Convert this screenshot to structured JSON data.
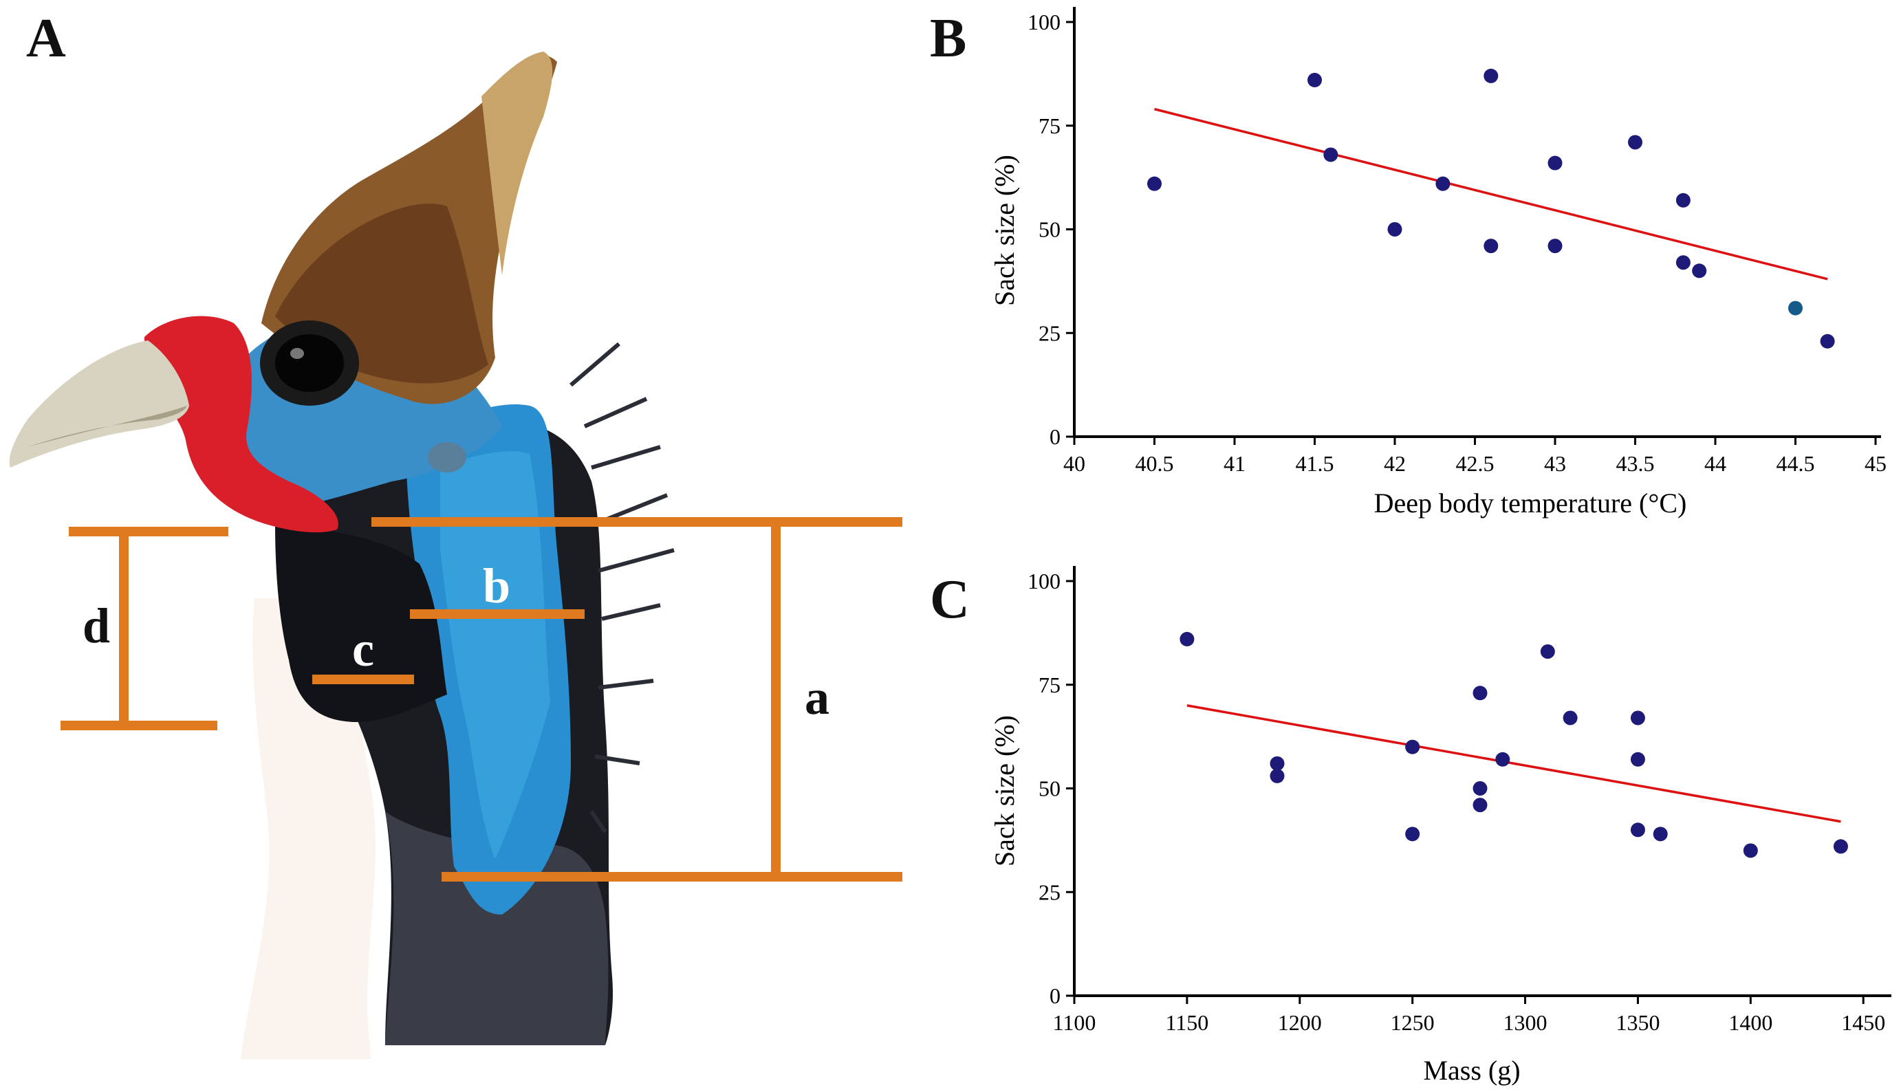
{
  "panels": {
    "a": "A",
    "b": "B",
    "c": "C"
  },
  "measurements": {
    "a": "a",
    "b": "b",
    "c": "c",
    "d": "d"
  },
  "colors": {
    "measure_line": "#e07a1f",
    "point": "#1e1a78",
    "point_alt": "#155a8a",
    "fit_line": "#dd1111",
    "axis": "#000000"
  },
  "chart_data": [
    {
      "type": "scatter",
      "xlabel": "Deep body temperature (°C)",
      "ylabel": "Sack size (%)",
      "xlim": [
        40,
        45
      ],
      "ylim": [
        0,
        100
      ],
      "xticks": [
        40,
        40.5,
        41,
        41.5,
        42,
        42.5,
        43,
        43.5,
        44,
        44.5,
        45
      ],
      "xtick_labels": [
        "40",
        "40.5",
        "41",
        "41.5",
        "42",
        "42.5",
        "43",
        "43.5",
        "44",
        "44.5",
        "45"
      ],
      "yticks": [
        0,
        25,
        50,
        75,
        100
      ],
      "ytick_labels": [
        "0",
        "25",
        "50",
        "75",
        "100"
      ],
      "points": [
        {
          "x": 40.5,
          "y": 61
        },
        {
          "x": 41.5,
          "y": 86
        },
        {
          "x": 41.6,
          "y": 68
        },
        {
          "x": 42.0,
          "y": 50
        },
        {
          "x": 42.3,
          "y": 61
        },
        {
          "x": 42.6,
          "y": 46
        },
        {
          "x": 42.6,
          "y": 87
        },
        {
          "x": 43.0,
          "y": 66
        },
        {
          "x": 43.0,
          "y": 46
        },
        {
          "x": 43.5,
          "y": 71
        },
        {
          "x": 43.8,
          "y": 57
        },
        {
          "x": 43.8,
          "y": 42
        },
        {
          "x": 43.9,
          "y": 40
        },
        {
          "x": 44.5,
          "y": 31,
          "alt": true
        },
        {
          "x": 44.7,
          "y": 23
        }
      ],
      "fit": {
        "x1": 40.5,
        "y1": 79,
        "x2": 44.7,
        "y2": 38
      }
    },
    {
      "type": "scatter",
      "xlabel": "Mass (g)",
      "ylabel": "Sack size (%)",
      "xlim": [
        1100,
        1460
      ],
      "ylim": [
        0,
        100
      ],
      "xticks": [
        1100,
        1150,
        1200,
        1250,
        1300,
        1350,
        1400,
        1450
      ],
      "xtick_labels": [
        "1100",
        "1150",
        "1200",
        "1250",
        "1300",
        "1350",
        "1400",
        "1450"
      ],
      "yticks": [
        0,
        25,
        50,
        75,
        100
      ],
      "ytick_labels": [
        "0",
        "25",
        "50",
        "75",
        "100"
      ],
      "points": [
        {
          "x": 1150,
          "y": 86
        },
        {
          "x": 1190,
          "y": 56
        },
        {
          "x": 1190,
          "y": 53
        },
        {
          "x": 1250,
          "y": 60
        },
        {
          "x": 1250,
          "y": 39
        },
        {
          "x": 1280,
          "y": 73
        },
        {
          "x": 1280,
          "y": 50
        },
        {
          "x": 1280,
          "y": 46
        },
        {
          "x": 1290,
          "y": 57
        },
        {
          "x": 1310,
          "y": 83
        },
        {
          "x": 1320,
          "y": 67
        },
        {
          "x": 1350,
          "y": 67
        },
        {
          "x": 1350,
          "y": 57
        },
        {
          "x": 1350,
          "y": 40
        },
        {
          "x": 1360,
          "y": 39
        },
        {
          "x": 1400,
          "y": 35
        },
        {
          "x": 1440,
          "y": 36
        }
      ],
      "fit": {
        "x1": 1150,
        "y1": 70,
        "x2": 1440,
        "y2": 42
      }
    }
  ]
}
